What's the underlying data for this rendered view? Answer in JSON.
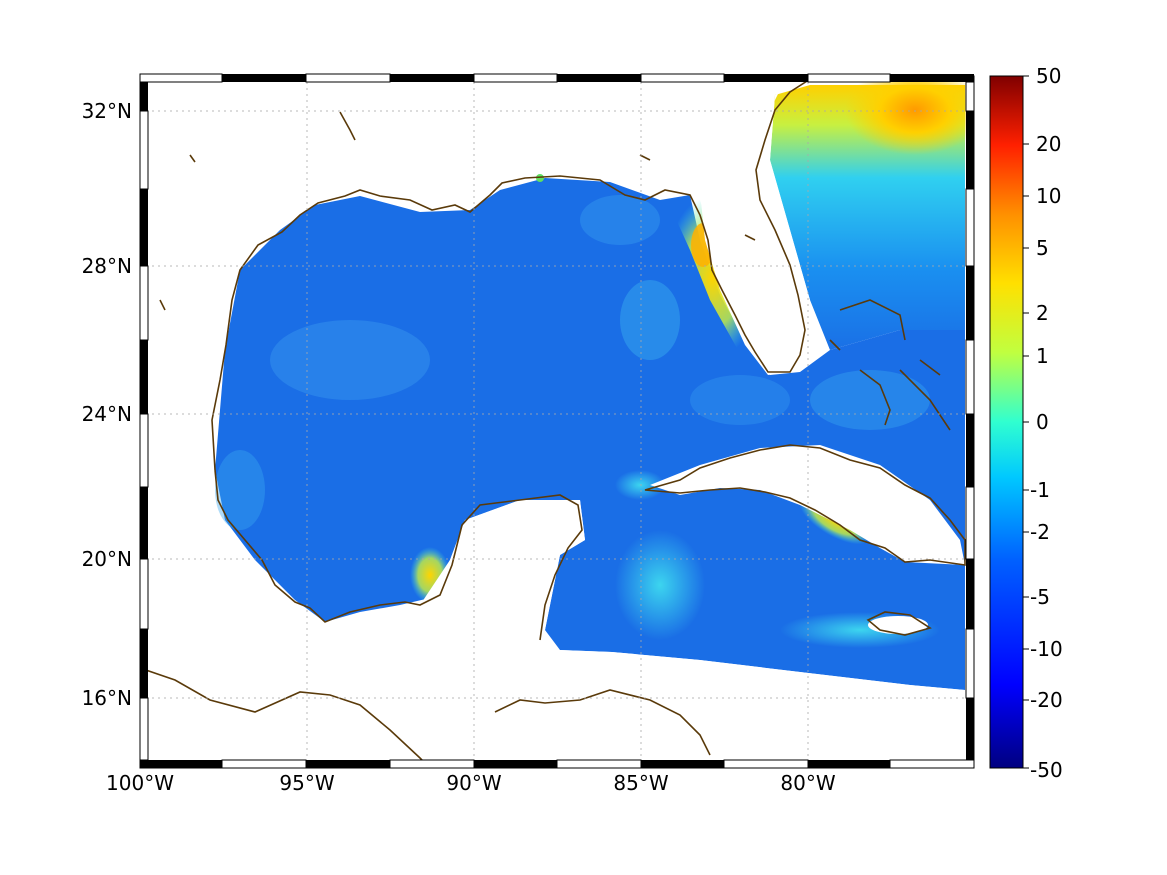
{
  "map": {
    "lon_labels": [
      "100°W",
      "95°W",
      "90°W",
      "85°W",
      "80°W"
    ],
    "lat_labels": [
      "32°N",
      "28°N",
      "24°N",
      "20°N",
      "16°N"
    ],
    "coastline_color": "#5a3a0a",
    "ocean_base_color": "#1a6ee6",
    "grid": true
  },
  "colorbar": {
    "ticks": [
      "50",
      "20",
      "10",
      "5",
      "2",
      "1",
      "0",
      "-1",
      "-2",
      "-5",
      "-10",
      "-20",
      "-50"
    ],
    "colors": [
      "#800000",
      "#ff0000",
      "#ff8000",
      "#ffff00",
      "#80ff80",
      "#00ffff",
      "#0080ff",
      "#0000ff",
      "#000080"
    ]
  }
}
